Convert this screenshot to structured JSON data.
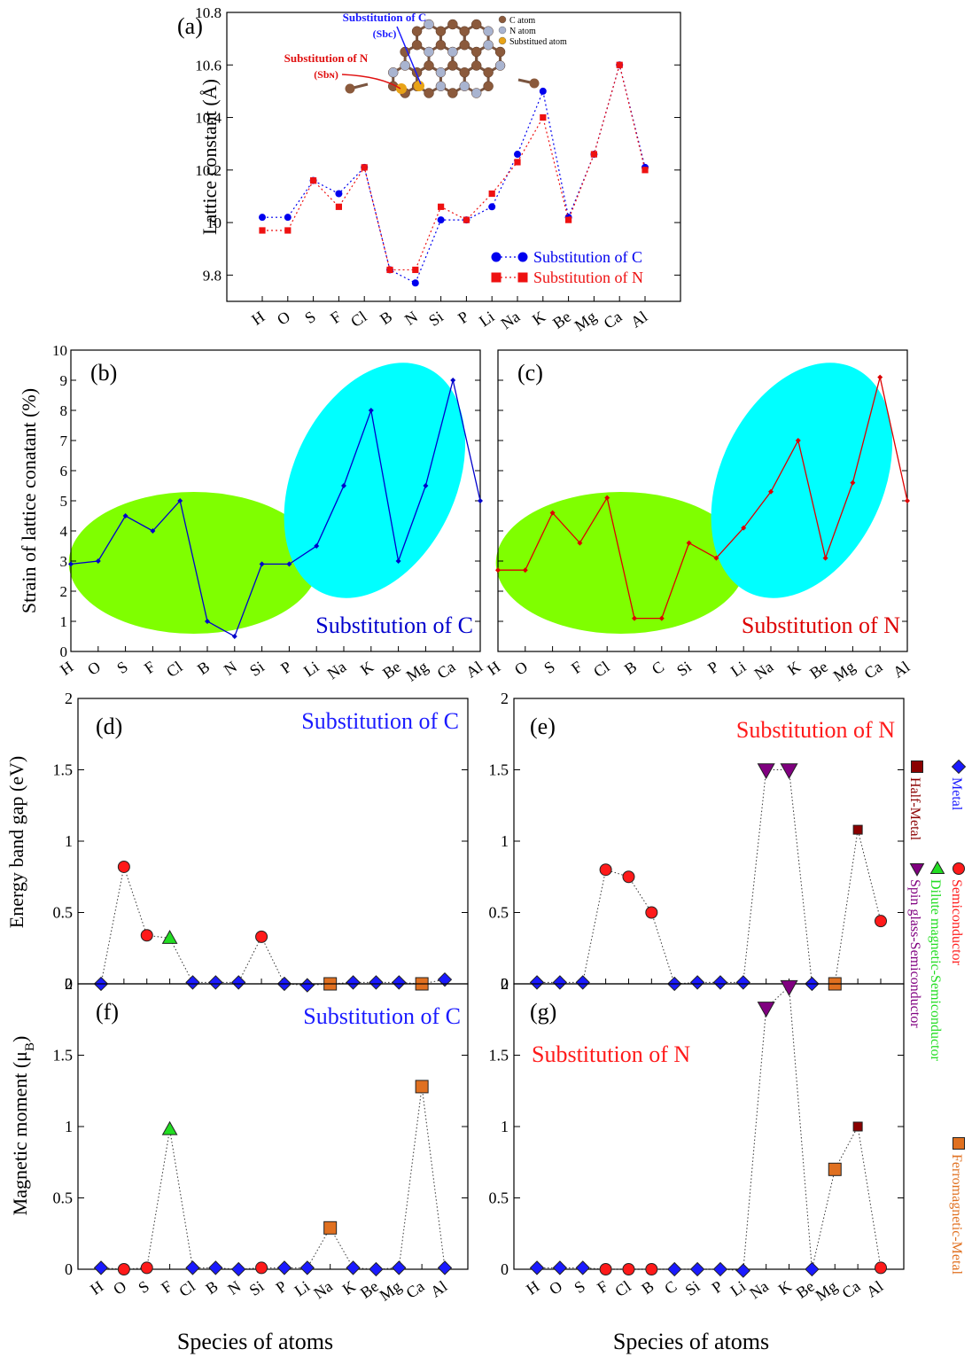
{
  "chart_data": [
    {
      "id": "a",
      "type": "line",
      "panel_label": "(a)",
      "categories": [
        "H",
        "O",
        "S",
        "F",
        "Cl",
        "B",
        "N",
        "Si",
        "P",
        "Li",
        "Na",
        "K",
        "Be",
        "Mg",
        "Ca",
        "Al"
      ],
      "ylabel": "Lattice constant (Å)",
      "ylim": [
        9.7,
        10.8
      ],
      "yticks": [
        "9.8",
        "10",
        "10.2",
        "10.4",
        "10.6",
        "10.8"
      ],
      "series": [
        {
          "name": "Substitution of C",
          "color": "#0000ee",
          "marker": "circle",
          "values": [
            10.02,
            10.02,
            10.16,
            10.11,
            10.21,
            9.82,
            9.77,
            10.01,
            10.01,
            10.06,
            10.26,
            10.5,
            10.02,
            10.26,
            10.6,
            10.21
          ]
        },
        {
          "name": "Substitution of N",
          "color": "#ee1111",
          "marker": "square",
          "values": [
            9.97,
            9.97,
            10.16,
            10.06,
            10.21,
            9.82,
            9.82,
            10.06,
            10.01,
            10.11,
            10.23,
            10.4,
            10.01,
            10.26,
            10.6,
            10.2
          ]
        }
      ],
      "inset": {
        "legend": [
          "C atom",
          "N atom",
          "Substitued atom"
        ],
        "label_c_line1": "Substitution of C",
        "label_c_line2": "(Sbc)",
        "label_n_line1": "Substitution of N",
        "label_n_line2": "(Sbɴ)",
        "colors": {
          "c_atom": "#8b5a3c",
          "n_atom": "#a9b4d0",
          "sub_atom": "#e8a317"
        }
      }
    },
    {
      "id": "b",
      "type": "line",
      "panel_label": "(b)",
      "annotation": "Substitution of C",
      "categories": [
        "H",
        "O",
        "S",
        "F",
        "Cl",
        "B",
        "N",
        "Si",
        "P",
        "Li",
        "Na",
        "K",
        "Be",
        "Mg",
        "Ca",
        "Al"
      ],
      "ylabel": "Strain of lattice conatant (%)",
      "ylim": [
        0,
        10
      ],
      "yticks": [
        "0",
        "1",
        "2",
        "3",
        "4",
        "5",
        "6",
        "7",
        "8",
        "9",
        "10"
      ],
      "series": [
        {
          "name": "",
          "color": "#0000cc",
          "values": [
            2.9,
            3.0,
            4.5,
            4.0,
            5.0,
            1.0,
            0.5,
            2.9,
            2.9,
            3.5,
            5.5,
            8.0,
            3.0,
            5.5,
            9.0,
            5.0
          ]
        }
      ],
      "ellipse_colors": [
        "#7fff00",
        "#00ffff"
      ]
    },
    {
      "id": "c",
      "type": "line",
      "panel_label": "(c)",
      "annotation": "Substitution of N",
      "categories": [
        "H",
        "O",
        "S",
        "F",
        "Cl",
        "B",
        "C",
        "Si",
        "P",
        "Li",
        "Na",
        "K",
        "Be",
        "Mg",
        "Ca",
        "Al"
      ],
      "ylim": [
        0,
        10
      ],
      "series": [
        {
          "name": "",
          "color": "#dd0000",
          "values": [
            2.7,
            2.7,
            4.6,
            3.6,
            5.1,
            1.1,
            1.1,
            3.6,
            3.1,
            4.1,
            5.3,
            7.0,
            3.1,
            5.6,
            9.1,
            5.0
          ]
        }
      ],
      "ellipse_colors": [
        "#7fff00",
        "#00ffff"
      ]
    },
    {
      "id": "d",
      "type": "scatter",
      "panel_label": "(d)",
      "annotation": "Substitution of  C",
      "ylabel": "Energy band gap (eV)",
      "ylim": [
        0,
        2
      ],
      "yticks": [
        "0",
        "0.5",
        "1",
        "1.5",
        "2"
      ],
      "points": [
        {
          "atom": "H",
          "value": 0.0,
          "cls": "Metal"
        },
        {
          "atom": "O",
          "value": 0.82,
          "cls": "Semiconductor"
        },
        {
          "atom": "S",
          "value": 0.34,
          "cls": "Semiconductor"
        },
        {
          "atom": "F",
          "value": 0.32,
          "cls": "Dilute magnetic-Semiconductor"
        },
        {
          "atom": "Cl",
          "value": 0.01,
          "cls": "Metal"
        },
        {
          "atom": "B",
          "value": 0.01,
          "cls": "Metal"
        },
        {
          "atom": "N",
          "value": 0.01,
          "cls": "Metal"
        },
        {
          "atom": "Si",
          "value": 0.33,
          "cls": "Semiconductor"
        },
        {
          "atom": "P",
          "value": 0.0,
          "cls": "Metal"
        },
        {
          "atom": "Li",
          "value": -0.01,
          "cls": "Metal"
        },
        {
          "atom": "Na",
          "value": 0.0,
          "cls": "Ferromagnetic-Metal"
        },
        {
          "atom": "K",
          "value": 0.01,
          "cls": "Metal"
        },
        {
          "atom": "Be",
          "value": 0.01,
          "cls": "Metal"
        },
        {
          "atom": "Mg",
          "value": 0.01,
          "cls": "Metal"
        },
        {
          "atom": "Ca",
          "value": 0.0,
          "cls": "Ferromagnetic-Metal"
        },
        {
          "atom": "Al",
          "value": 0.03,
          "cls": "Metal"
        }
      ]
    },
    {
      "id": "e",
      "type": "scatter",
      "panel_label": "(e)",
      "annotation": "Substitution of  N",
      "ylim": [
        0,
        2
      ],
      "yticks": [
        "0",
        "0.5",
        "1",
        "1.5",
        "2"
      ],
      "points": [
        {
          "atom": "H",
          "value": 0.01,
          "cls": "Metal"
        },
        {
          "atom": "O",
          "value": 0.01,
          "cls": "Metal"
        },
        {
          "atom": "S",
          "value": 0.01,
          "cls": "Metal"
        },
        {
          "atom": "F",
          "value": 0.8,
          "cls": "Semiconductor"
        },
        {
          "atom": "Cl",
          "value": 0.75,
          "cls": "Semiconductor"
        },
        {
          "atom": "B",
          "value": 0.5,
          "cls": "Semiconductor"
        },
        {
          "atom": "C",
          "value": 0.0,
          "cls": "Metal"
        },
        {
          "atom": "Si",
          "value": 0.01,
          "cls": "Metal"
        },
        {
          "atom": "P",
          "value": 0.01,
          "cls": "Metal"
        },
        {
          "atom": "Li",
          "value": 0.01,
          "cls": "Metal"
        },
        {
          "atom": "Na",
          "value": 1.5,
          "cls": "Spin glass-Semiconductor"
        },
        {
          "atom": "K",
          "value": 1.5,
          "cls": "Spin glass-Semiconductor"
        },
        {
          "atom": "Be",
          "value": 0.0,
          "cls": "Metal"
        },
        {
          "atom": "Mg",
          "value": 0.0,
          "cls": "Ferromagnetic-Metal"
        },
        {
          "atom": "Ca",
          "value": 1.08,
          "cls": "Half-Metal"
        },
        {
          "atom": "Al",
          "value": 0.44,
          "cls": "Semiconductor"
        }
      ]
    },
    {
      "id": "f",
      "type": "scatter",
      "panel_label": "(f)",
      "annotation": "Substitution of  C",
      "xlabel": "Species of atoms",
      "ylabel": "Magnetic moment (μ",
      "ylabel_sub": "B",
      "ylabel_end": ")",
      "ylim": [
        0,
        2
      ],
      "yticks": [
        "0",
        "0.5",
        "1",
        "1.5",
        "2"
      ],
      "points": [
        {
          "atom": "H",
          "value": 0.01,
          "cls": "Metal"
        },
        {
          "atom": "O",
          "value": 0.0,
          "cls": "Semiconductor"
        },
        {
          "atom": "S",
          "value": 0.01,
          "cls": "Semiconductor"
        },
        {
          "atom": "F",
          "value": 0.98,
          "cls": "Dilute magnetic-Semiconductor"
        },
        {
          "atom": "Cl",
          "value": 0.01,
          "cls": "Metal"
        },
        {
          "atom": "B",
          "value": 0.01,
          "cls": "Metal"
        },
        {
          "atom": "N",
          "value": 0.0,
          "cls": "Metal"
        },
        {
          "atom": "Si",
          "value": 0.01,
          "cls": "Semiconductor"
        },
        {
          "atom": "P",
          "value": 0.01,
          "cls": "Metal"
        },
        {
          "atom": "Li",
          "value": 0.01,
          "cls": "Metal"
        },
        {
          "atom": "Na",
          "value": 0.29,
          "cls": "Ferromagnetic-Metal"
        },
        {
          "atom": "K",
          "value": 0.01,
          "cls": "Metal"
        },
        {
          "atom": "Be",
          "value": 0.0,
          "cls": "Metal"
        },
        {
          "atom": "Mg",
          "value": 0.01,
          "cls": "Metal"
        },
        {
          "atom": "Ca",
          "value": 1.28,
          "cls": "Ferromagnetic-Metal"
        },
        {
          "atom": "Al",
          "value": 0.01,
          "cls": "Metal"
        }
      ]
    },
    {
      "id": "g",
      "type": "scatter",
      "panel_label": "(g)",
      "annotation": "Substitution of  N",
      "xlabel": "Species of atoms",
      "ylim": [
        0,
        2
      ],
      "yticks": [
        "0",
        "0.5",
        "1",
        "1.5",
        "2"
      ],
      "points": [
        {
          "atom": "H",
          "value": 0.01,
          "cls": "Metal"
        },
        {
          "atom": "O",
          "value": 0.01,
          "cls": "Metal"
        },
        {
          "atom": "S",
          "value": 0.01,
          "cls": "Metal"
        },
        {
          "atom": "F",
          "value": 0.0,
          "cls": "Semiconductor"
        },
        {
          "atom": "Cl",
          "value": 0.0,
          "cls": "Semiconductor"
        },
        {
          "atom": "B",
          "value": 0.0,
          "cls": "Semiconductor"
        },
        {
          "atom": "C",
          "value": 0.0,
          "cls": "Metal"
        },
        {
          "atom": "Si",
          "value": 0.0,
          "cls": "Metal"
        },
        {
          "atom": "P",
          "value": 0.0,
          "cls": "Metal"
        },
        {
          "atom": "Li",
          "value": -0.01,
          "cls": "Metal"
        },
        {
          "atom": "Na",
          "value": 1.83,
          "cls": "Spin glass-Semiconductor"
        },
        {
          "atom": "K",
          "value": 1.98,
          "cls": "Spin glass-Semiconductor"
        },
        {
          "atom": "Be",
          "value": 0.0,
          "cls": "Metal"
        },
        {
          "atom": "Mg",
          "value": 0.7,
          "cls": "Ferromagnetic-Metal"
        },
        {
          "atom": "Ca",
          "value": 1.0,
          "cls": "Half-Metal"
        },
        {
          "atom": "Al",
          "value": 0.01,
          "cls": "Semiconductor"
        }
      ]
    }
  ],
  "class_legend": [
    {
      "label": "Metal",
      "marker": "diamond",
      "color": "#1a1aff"
    },
    {
      "label": "Half-Metal",
      "marker": "square",
      "color": "#8b0000"
    },
    {
      "label": "Semiconductor",
      "marker": "circle",
      "color": "#ff1a1a"
    },
    {
      "label": "Dilute magnetic-Semiconductor",
      "marker": "triangle-up",
      "color": "#22dd22"
    },
    {
      "label": "Spin glass-Semiconductor",
      "marker": "triangle-down",
      "color": "#800080"
    },
    {
      "label": "Ferromagnetic-Metal",
      "marker": "square",
      "color": "#e07020"
    }
  ]
}
